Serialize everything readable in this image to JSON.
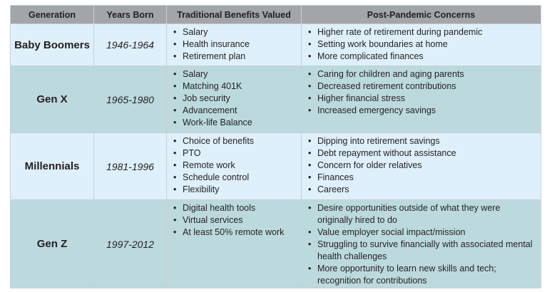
{
  "table": {
    "header": [
      "Generation",
      "Years Born",
      "Traditional Benefits Valued",
      "Post-Pandemic Concerns"
    ],
    "rows": [
      {
        "generation": "Baby Boomers",
        "years": "1946-1964",
        "benefits": [
          "Salary",
          "Health insurance",
          "Retirement plan"
        ],
        "concerns": [
          "Higher rate of retirement during pandemic",
          "Setting work boundaries at home",
          "More complicated finances"
        ]
      },
      {
        "generation": "Gen X",
        "years": "1965-1980",
        "benefits": [
          "Salary",
          "Matching 401K",
          "Job security",
          "Advancement",
          "Work-life Balance"
        ],
        "concerns": [
          "Caring for children and aging parents",
          "Decreased retirement contributions",
          "Higher financial stress",
          "Increased emergency savings"
        ]
      },
      {
        "generation": "Millennials",
        "years": "1981-1996",
        "benefits": [
          "Choice of benefits",
          "PTO",
          "Remote work",
          "Schedule control",
          "Flexibility"
        ],
        "concerns": [
          "Dipping into retirement savings",
          "Debt repayment without assistance",
          "Concern for older relatives",
          "Finances",
          "Careers"
        ]
      },
      {
        "generation": "Gen Z",
        "years": "1997-2012",
        "benefits": [
          "Digital health tools",
          "Virtual services",
          "At least 50% remote work"
        ],
        "concerns": [
          "Desire opportunities outside of what they were originally hired to do",
          "Value employer social impact/mission",
          "Struggling to survive financially with associated mental health challenges",
          "More opportunity to learn new skills and tech; recognition for contributions"
        ]
      }
    ]
  }
}
